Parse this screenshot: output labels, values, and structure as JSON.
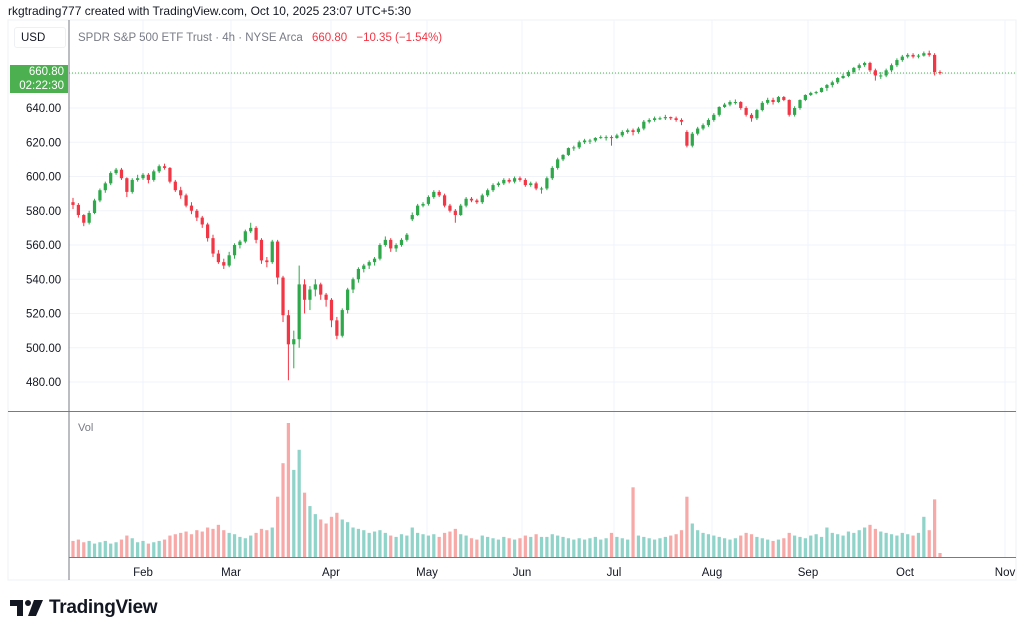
{
  "header": {
    "credit": "rkgtrading777 created with TradingView.com, Oct 10, 2025 23:07 UTC+5:30"
  },
  "currency": "USD",
  "legend": {
    "symbol": "SPDR S&P 500 ETF Trust · 4h · NYSE Arca",
    "last": "660.80",
    "change": "−10.35 (−1.54%)"
  },
  "price_label": {
    "price": "660.80",
    "countdown": "02:22:30"
  },
  "volume_label": "Vol",
  "brand": "TradingView",
  "colors": {
    "up": "#2ea84a",
    "down": "#f23645",
    "vol_up": "#8fd3c9",
    "vol_down": "#f7a9a8",
    "label_bg": "#4caf50"
  },
  "chart_data": {
    "type": "candlestick",
    "title": "SPDR S&P 500 ETF Trust · 4h · NYSE Arca",
    "last_price": 660.8,
    "ylabel": "USD",
    "ylim": [
      470,
      680
    ],
    "yticks": [
      "480.00",
      "500.00",
      "520.00",
      "540.00",
      "560.00",
      "580.00",
      "600.00",
      "620.00",
      "640.00"
    ],
    "ytick_values": [
      480,
      500,
      520,
      540,
      560,
      580,
      600,
      620,
      640
    ],
    "xticks": [
      "Feb",
      "Mar",
      "Apr",
      "May",
      "Jun",
      "Jul",
      "Aug",
      "Sep",
      "Oct",
      "Nov"
    ],
    "volume_scale": "relative (max = 100)",
    "candles": [
      [
        585,
        587.5,
        581,
        583.4
      ],
      [
        583.4,
        584.5,
        576,
        577.5
      ],
      [
        577.5,
        578,
        571,
        573
      ],
      [
        573,
        580,
        572,
        578.7
      ],
      [
        578.7,
        587,
        578,
        586
      ],
      [
        586,
        593,
        585,
        592
      ],
      [
        592,
        597,
        590.5,
        596
      ],
      [
        596,
        603,
        595,
        602
      ],
      [
        602,
        605,
        601,
        604
      ],
      [
        604,
        605,
        598,
        599
      ],
      [
        599,
        599.5,
        588,
        591
      ],
      [
        591,
        599,
        590,
        598
      ],
      [
        598,
        601,
        597,
        599
      ],
      [
        599,
        602,
        598,
        601
      ],
      [
        601,
        602,
        596,
        598
      ],
      [
        598,
        604,
        597,
        603
      ],
      [
        603,
        607,
        602,
        606
      ],
      [
        606,
        607.5,
        604,
        605
      ],
      [
        605,
        605.5,
        596,
        597
      ],
      [
        597,
        598,
        591,
        592
      ],
      [
        592,
        594,
        587,
        589
      ],
      [
        589,
        590,
        582,
        583
      ],
      [
        583,
        585,
        578,
        580
      ],
      [
        580,
        581,
        574,
        576
      ],
      [
        576,
        577,
        570,
        572
      ],
      [
        572,
        573,
        562,
        564
      ],
      [
        564,
        566,
        553,
        555
      ],
      [
        555,
        557,
        549,
        550
      ],
      [
        550,
        552,
        546,
        548
      ],
      [
        548,
        556,
        547,
        554
      ],
      [
        554,
        561,
        552,
        560
      ],
      [
        560,
        563,
        558,
        562
      ],
      [
        562,
        569,
        561,
        568
      ],
      [
        568,
        573,
        567,
        570
      ],
      [
        570,
        571,
        561,
        563
      ],
      [
        563,
        564,
        549,
        551
      ],
      [
        551,
        553,
        547,
        550
      ],
      [
        550,
        563,
        549,
        562
      ],
      [
        562,
        563,
        537,
        541
      ],
      [
        541,
        542,
        515,
        519
      ],
      [
        519,
        522,
        481,
        502
      ],
      [
        502,
        510,
        488,
        505
      ],
      [
        505,
        548,
        500,
        537
      ],
      [
        537,
        540,
        520,
        528
      ],
      [
        528,
        536,
        522,
        534
      ],
      [
        534,
        540,
        530,
        537
      ],
      [
        537,
        538,
        528,
        531
      ],
      [
        531,
        532,
        524,
        528
      ],
      [
        528,
        529,
        512,
        516
      ],
      [
        516,
        518,
        505,
        507
      ],
      [
        507,
        523,
        506,
        522
      ],
      [
        522,
        535,
        520,
        534
      ],
      [
        534,
        541,
        532,
        540
      ],
      [
        540,
        547,
        538,
        546
      ],
      [
        546,
        549,
        544,
        548
      ],
      [
        548,
        551,
        546,
        550
      ],
      [
        550,
        553,
        548,
        552
      ],
      [
        552,
        561,
        551,
        560
      ],
      [
        560,
        565,
        559,
        563
      ],
      [
        563,
        564,
        556,
        558
      ],
      [
        558,
        561,
        556,
        560
      ],
      [
        560,
        564,
        559,
        563
      ],
      [
        563,
        567,
        562,
        566
      ],
      [
        575,
        579,
        574,
        577.5
      ],
      [
        577.5,
        584,
        577,
        583
      ],
      [
        583,
        585,
        582,
        584
      ],
      [
        584,
        589,
        583,
        588
      ],
      [
        588,
        592,
        587,
        591
      ],
      [
        591,
        592,
        588,
        589
      ],
      [
        589,
        590,
        582,
        583
      ],
      [
        583,
        584,
        579,
        580
      ],
      [
        580,
        581,
        573,
        577.5
      ],
      [
        577.5,
        584,
        577,
        583
      ],
      [
        583,
        588,
        582,
        587
      ],
      [
        587,
        588,
        585,
        586
      ],
      [
        586,
        587,
        584,
        585
      ],
      [
        585,
        590,
        584,
        589
      ],
      [
        589,
        593,
        588,
        592
      ],
      [
        592,
        596,
        591,
        595
      ],
      [
        595,
        597,
        594,
        596
      ],
      [
        596,
        599,
        595,
        598
      ],
      [
        598,
        599,
        596,
        597
      ],
      [
        597,
        600,
        596,
        599
      ],
      [
        599,
        600,
        597,
        598
      ],
      [
        598,
        599,
        594,
        595
      ],
      [
        595,
        597,
        594,
        596
      ],
      [
        596,
        597,
        592,
        593
      ],
      [
        593,
        594,
        590,
        593
      ],
      [
        593,
        600,
        592,
        599
      ],
      [
        599,
        606,
        598,
        605
      ],
      [
        605,
        611,
        604,
        610
      ],
      [
        610,
        613,
        609,
        612.6
      ],
      [
        612.6,
        617,
        612,
        616.6
      ],
      [
        616.6,
        618,
        615,
        617
      ],
      [
        617,
        621,
        616,
        620
      ],
      [
        620,
        622,
        619,
        621
      ],
      [
        621,
        622,
        619,
        621
      ],
      [
        621,
        623,
        620,
        622.5
      ],
      [
        622.5,
        624,
        622,
        623
      ],
      [
        623,
        624,
        621,
        623
      ],
      [
        623,
        624,
        618,
        622.5
      ],
      [
        622.5,
        625,
        622,
        624
      ],
      [
        624,
        627,
        623,
        626
      ],
      [
        626,
        628,
        625,
        627
      ],
      [
        627,
        628,
        624,
        626
      ],
      [
        626,
        629,
        625,
        628
      ],
      [
        628,
        633,
        627,
        632
      ],
      [
        632,
        634,
        631,
        633
      ],
      [
        633,
        635,
        632,
        634
      ],
      [
        634,
        635,
        633,
        634
      ],
      [
        634,
        636,
        633,
        634.7
      ],
      [
        634.7,
        635,
        633,
        634
      ],
      [
        634,
        635,
        632,
        633
      ],
      [
        633,
        634,
        630,
        632
      ],
      [
        626,
        627,
        617,
        618
      ],
      [
        618,
        626,
        617,
        625
      ],
      [
        625,
        629,
        624,
        628
      ],
      [
        628,
        631,
        627,
        630
      ],
      [
        630,
        634,
        629,
        633
      ],
      [
        633,
        637,
        632,
        636
      ],
      [
        636,
        641,
        635,
        640.6
      ],
      [
        640.6,
        643,
        640,
        642
      ],
      [
        642,
        644.5,
        641,
        643.5
      ],
      [
        643.5,
        645,
        642,
        643.5
      ],
      [
        643.5,
        644,
        639,
        640
      ],
      [
        640,
        641,
        635,
        636
      ],
      [
        636,
        637,
        632,
        634
      ],
      [
        634,
        639.5,
        633,
        638.8
      ],
      [
        638.8,
        644,
        638,
        643
      ],
      [
        643,
        646,
        642,
        644.7
      ],
      [
        644.7,
        646,
        642,
        643.5
      ],
      [
        643.5,
        647,
        643,
        646.4
      ],
      [
        646.4,
        647,
        644,
        644.7
      ],
      [
        644.7,
        645,
        635,
        636
      ],
      [
        636,
        641,
        635,
        640
      ],
      [
        640,
        645,
        639,
        644.7
      ],
      [
        644.7,
        648,
        644,
        647.6
      ],
      [
        647.6,
        649.5,
        647,
        648.8
      ],
      [
        648.8,
        650,
        648,
        649.3
      ],
      [
        649.3,
        652,
        649,
        651.7
      ],
      [
        651.7,
        654,
        650,
        653.4
      ],
      [
        653.4,
        656,
        652,
        655
      ],
      [
        655,
        658,
        654,
        657.5
      ],
      [
        657.5,
        660,
        657,
        658.7
      ],
      [
        658.7,
        662,
        658,
        661
      ],
      [
        661,
        664,
        660,
        663.4
      ],
      [
        663.4,
        666,
        662,
        665
      ],
      [
        665,
        667,
        664,
        666.3
      ],
      [
        666.3,
        667,
        661,
        662
      ],
      [
        662,
        663,
        656,
        659
      ],
      [
        659,
        661,
        657,
        659
      ],
      [
        659,
        663,
        658,
        662
      ],
      [
        662,
        666,
        661,
        665
      ],
      [
        665,
        669,
        664,
        668
      ],
      [
        668,
        671,
        667,
        670
      ],
      [
        670,
        672,
        669,
        671
      ],
      [
        671,
        672,
        669,
        670
      ],
      [
        670,
        671.5,
        669,
        670.6
      ],
      [
        670.6,
        673,
        670,
        672
      ],
      [
        672,
        673.5,
        670,
        671
      ],
      [
        671,
        672,
        659,
        661
      ],
      [
        661,
        662,
        659.5,
        660.8
      ]
    ],
    "volume": [
      12,
      13,
      11,
      12,
      10,
      11,
      12,
      10,
      11,
      13,
      16,
      14,
      11,
      12,
      10,
      11,
      12,
      13,
      16,
      17,
      18,
      19,
      17,
      20,
      19,
      22,
      21,
      24,
      20,
      18,
      17,
      15,
      14,
      16,
      18,
      21,
      20,
      22,
      45,
      70,
      100,
      65,
      80,
      48,
      38,
      32,
      28,
      25,
      30,
      33,
      28,
      26,
      22,
      21,
      20,
      18,
      19,
      20,
      18,
      16,
      15,
      17,
      16,
      22,
      18,
      17,
      16,
      17,
      15,
      18,
      19,
      21,
      17,
      16,
      14,
      13,
      16,
      15,
      14,
      13,
      15,
      14,
      13,
      14,
      16,
      15,
      17,
      15,
      15,
      17,
      16,
      15,
      14,
      13,
      14,
      13,
      14,
      15,
      13,
      14,
      18,
      15,
      14,
      13,
      52,
      16,
      15,
      14,
      13,
      14,
      15,
      16,
      17,
      20,
      45,
      25,
      20,
      18,
      17,
      16,
      15,
      14,
      13,
      14,
      16,
      18,
      17,
      15,
      14,
      13,
      12,
      13,
      14,
      18,
      16,
      15,
      14,
      16,
      17,
      15,
      22,
      18,
      17,
      16,
      19,
      18,
      20,
      22,
      24,
      21,
      19,
      18,
      17,
      16,
      18,
      17,
      16,
      18,
      30,
      20,
      43,
      3
    ]
  }
}
